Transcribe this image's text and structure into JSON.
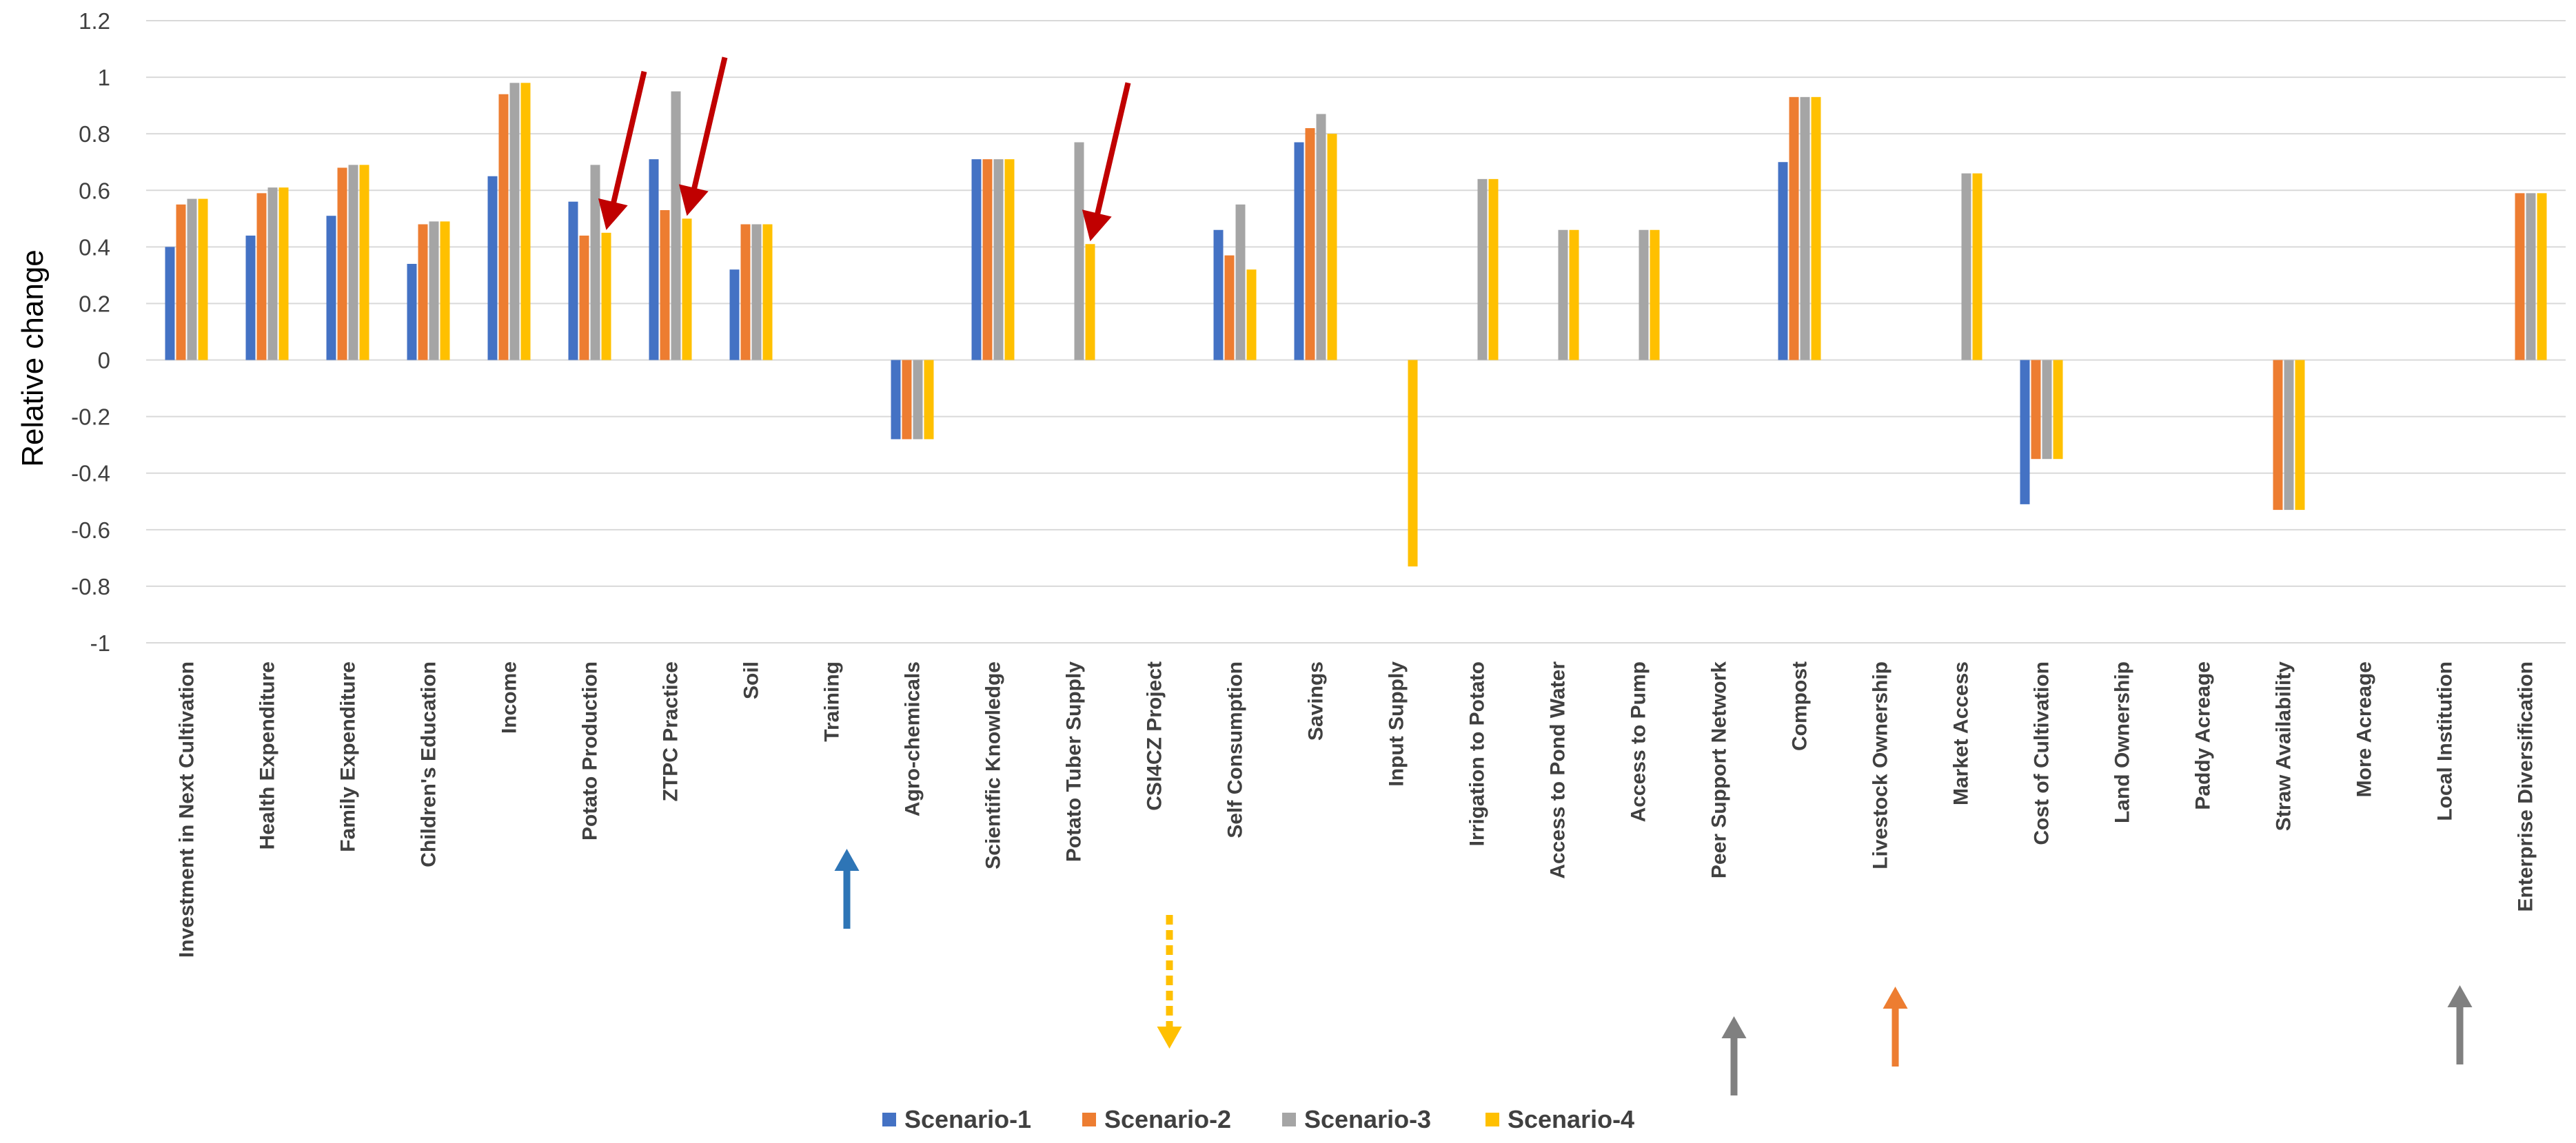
{
  "chart_data": {
    "type": "bar",
    "title": "",
    "xlabel": "",
    "ylabel": "Relative change",
    "ylim": [
      -1,
      1.2
    ],
    "yticks": [
      1.2,
      1,
      0.8,
      0.6,
      0.4,
      0.2,
      0,
      -0.2,
      -0.4,
      -0.6,
      -0.8,
      -1
    ],
    "ytick_labels": [
      "1.2",
      "1",
      "0.8",
      "0.6",
      "0.4",
      "0.2",
      "0",
      "-0.2",
      "-0.4",
      "-0.6",
      "-0.8",
      "-1"
    ],
    "grid": true,
    "legend_position": "bottom-center",
    "categories": [
      "Investment in Next Cultivation",
      "Health Expenditure",
      "Family Expenditure",
      "Children's Education",
      "Income",
      "Potato Production",
      "ZTPC Practice",
      "Soil",
      "Training",
      "Agro-chemicals",
      "Scientific Knowledge",
      "Potato Tuber Supply",
      "CSI4CZ Project",
      "Self Consumption",
      "Savings",
      "Input Supply",
      "Irrigation to Potato",
      "Access to Pond Water",
      "Access to Pump",
      "Peer Support Network",
      "Compost",
      "Livestock Ownership",
      "Market Access",
      "Cost of Cultivation",
      "Land Ownership",
      "Paddy Acreage",
      "Straw Availability",
      "More Acreage",
      "Local Institution",
      "Enterprise Diversification"
    ],
    "series": [
      {
        "name": "Scenario-1",
        "color": "#4472C4",
        "values": [
          0.4,
          0.44,
          0.51,
          0.34,
          0.65,
          0.56,
          0.71,
          0.32,
          0,
          -0.28,
          0.71,
          0,
          0,
          0.46,
          0.77,
          0,
          0,
          0,
          0,
          0,
          0.7,
          0,
          0,
          -0.51,
          0,
          0,
          0,
          0,
          0,
          0
        ]
      },
      {
        "name": "Scenario-2",
        "color": "#ED7D31",
        "values": [
          0.55,
          0.59,
          0.68,
          0.48,
          0.94,
          0.44,
          0.53,
          0.48,
          0,
          -0.28,
          0.71,
          0,
          0,
          0.37,
          0.82,
          0,
          0,
          0,
          0,
          0,
          0.93,
          0,
          0,
          -0.35,
          0,
          0,
          -0.53,
          0,
          0,
          0.59
        ]
      },
      {
        "name": "Scenario-3",
        "color": "#A5A5A5",
        "values": [
          0.57,
          0.61,
          0.69,
          0.49,
          0.98,
          0.69,
          0.95,
          0.48,
          0,
          -0.28,
          0.71,
          0.77,
          0,
          0.55,
          0.87,
          0,
          0.64,
          0.46,
          0.46,
          0,
          0.93,
          0,
          0.66,
          -0.35,
          0,
          0,
          -0.53,
          0,
          0,
          0.59
        ]
      },
      {
        "name": "Scenario-4",
        "color": "#FFC000",
        "values": [
          0.57,
          0.61,
          0.69,
          0.49,
          0.98,
          0.45,
          0.5,
          0.48,
          0,
          -0.28,
          0.71,
          0.41,
          0,
          0.32,
          0.8,
          -0.73,
          0.64,
          0.46,
          0.46,
          0,
          0.93,
          0,
          0.66,
          -0.35,
          0,
          0,
          -0.53,
          0,
          0,
          0.59
        ]
      }
    ],
    "annotations": {
      "red_arrows": [
        {
          "category": "Potato Production",
          "points_to_series": "Scenario-4"
        },
        {
          "category": "ZTPC Practice",
          "points_to_series": "Scenario-4"
        },
        {
          "category": "Potato Tuber Supply",
          "points_to_series": "Scenario-4"
        }
      ],
      "up_arrows": [
        {
          "category": "Training",
          "color": "#2E75B6",
          "style": "solid",
          "direction": "up"
        },
        {
          "category": "CSI4CZ Project",
          "color": "#FFC000",
          "style": "dashed",
          "direction": "down"
        },
        {
          "category": "Peer Support Network",
          "color": "#808080",
          "style": "solid",
          "direction": "up"
        },
        {
          "category": "Livestock Ownership",
          "color": "#ED7D31",
          "style": "solid",
          "direction": "up"
        },
        {
          "category": "Local Institution",
          "color": "#808080",
          "style": "solid",
          "direction": "up"
        }
      ]
    }
  }
}
